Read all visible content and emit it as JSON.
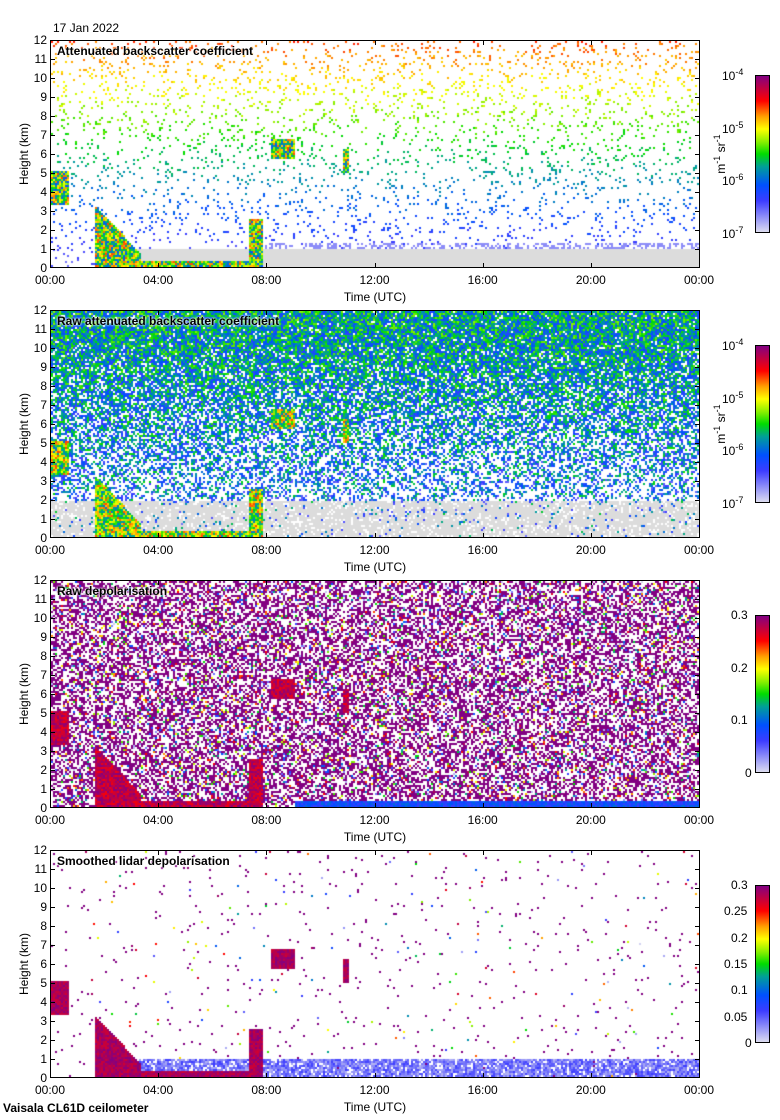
{
  "date": "17 Jan 2022",
  "footer": "Vaisala CL61D ceilometer",
  "chart_data": [
    {
      "type": "heatmap",
      "title": "Attenuated backscatter coefficient",
      "xlabel": "Time (UTC)",
      "ylabel": "Height (km)",
      "xticks": [
        "00:00",
        "04:00",
        "08:00",
        "12:00",
        "16:00",
        "20:00",
        "00:00"
      ],
      "yticks": [
        "0",
        "1",
        "2",
        "3",
        "4",
        "5",
        "6",
        "7",
        "8",
        "9",
        "10",
        "11",
        "12"
      ],
      "ylim": [
        0,
        12
      ],
      "colorbar": {
        "scale": "log",
        "range": [
          1e-07,
          0.0001
        ],
        "ticks": [
          "10-7",
          "10-6",
          "10-5",
          "10-4"
        ],
        "tick_base": "10",
        "tick_exps": [
          "-7",
          "-6",
          "-5",
          "-4"
        ],
        "label": "m-1 sr-1",
        "label_parts": [
          "m",
          "-1",
          " sr",
          "-1"
        ]
      }
    },
    {
      "type": "heatmap",
      "title": "Raw attenuated backscatter coefficient",
      "xlabel": "Time (UTC)",
      "ylabel": "Height (km)",
      "xticks": [
        "00:00",
        "04:00",
        "08:00",
        "12:00",
        "16:00",
        "20:00",
        "00:00"
      ],
      "yticks": [
        "0",
        "1",
        "2",
        "3",
        "4",
        "5",
        "6",
        "7",
        "8",
        "9",
        "10",
        "11",
        "12"
      ],
      "ylim": [
        0,
        12
      ],
      "colorbar": {
        "scale": "log",
        "range": [
          1e-07,
          0.0001
        ],
        "ticks": [
          "10-7",
          "10-6",
          "10-5",
          "10-4"
        ],
        "tick_base": "10",
        "tick_exps": [
          "-7",
          "-6",
          "-5",
          "-4"
        ],
        "label": "m-1 sr-1",
        "label_parts": [
          "m",
          "-1",
          " sr",
          "-1"
        ]
      }
    },
    {
      "type": "heatmap",
      "title": "Raw depolarisation",
      "xlabel": "Time (UTC)",
      "ylabel": "Height (km)",
      "xticks": [
        "00:00",
        "04:00",
        "08:00",
        "12:00",
        "16:00",
        "20:00",
        "00:00"
      ],
      "yticks": [
        "0",
        "1",
        "2",
        "3",
        "4",
        "5",
        "6",
        "7",
        "8",
        "9",
        "10",
        "11",
        "12"
      ],
      "ylim": [
        0,
        12
      ],
      "colorbar": {
        "scale": "linear",
        "range": [
          0,
          0.3
        ],
        "ticks": [
          "0",
          "0.1",
          "0.2",
          "0.3"
        ]
      }
    },
    {
      "type": "heatmap",
      "title": "Smoothed lidar depolarisation",
      "xlabel": "Time (UTC)",
      "ylabel": "Height (km)",
      "xticks": [
        "00:00",
        "04:00",
        "08:00",
        "12:00",
        "16:00",
        "20:00",
        "00:00"
      ],
      "yticks": [
        "0",
        "1",
        "2",
        "3",
        "4",
        "5",
        "6",
        "7",
        "8",
        "9",
        "10",
        "11",
        "12"
      ],
      "ylim": [
        0,
        12
      ],
      "colorbar": {
        "scale": "linear",
        "range": [
          0,
          0.3
        ],
        "ticks": [
          "0",
          "0.05",
          "0.1",
          "0.15",
          "0.2",
          "0.25",
          "0.3"
        ]
      }
    }
  ]
}
